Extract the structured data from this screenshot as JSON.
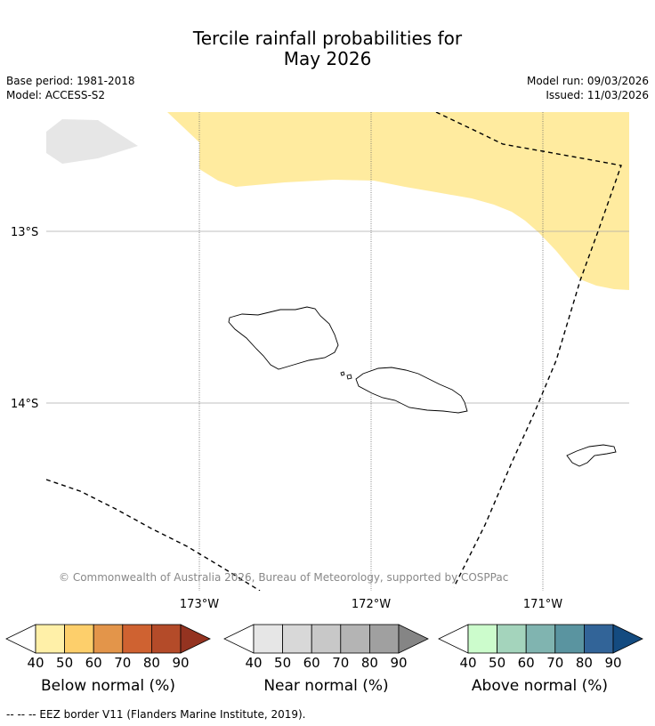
{
  "title_line1": "Tercile rainfall probabilities for",
  "title_line2": "May 2026",
  "base_period": "Base period: 1981-2018",
  "model": "Model: ACCESS-S2",
  "model_run": "Model run: 09/03/2026",
  "issued": "Issued: 11/03/2026",
  "copyright": "© Commonwealth of Australia 2026, Bureau of Meteorology, supported by COSPPac",
  "lat_labels": [
    "13°S",
    "14°S"
  ],
  "lon_labels": [
    "173°W",
    "172°W",
    "171°W"
  ],
  "colorbars": [
    {
      "label": "Below normal (%)",
      "ticks": [
        "40",
        "50",
        "60",
        "70",
        "80",
        "90"
      ],
      "colors": [
        "#fff0a8",
        "#fdcf6b",
        "#e3954a",
        "#cf6231",
        "#b44b29",
        "#943320"
      ]
    },
    {
      "label": "Near normal (%)",
      "ticks": [
        "40",
        "50",
        "60",
        "70",
        "80",
        "90"
      ],
      "colors": [
        "#e6e6e6",
        "#d8d8d8",
        "#c8c8c8",
        "#b4b4b4",
        "#a0a0a0",
        "#858585"
      ]
    },
    {
      "label": "Above normal (%)",
      "ticks": [
        "40",
        "50",
        "60",
        "70",
        "80",
        "90"
      ],
      "colors": [
        "#ccfccc",
        "#a4d4bc",
        "#80b4b0",
        "#5a94a0",
        "#326498",
        "#144b80"
      ]
    }
  ],
  "footer": "--  --  -- EEZ border V11 (Flanders Marine Institute, 2019).",
  "colors": {
    "below_normal_40_50": "#ffeb9f",
    "near_normal_40_50": "#e6e6e6",
    "grid": "#aaaaaa",
    "eez": "#000000"
  }
}
